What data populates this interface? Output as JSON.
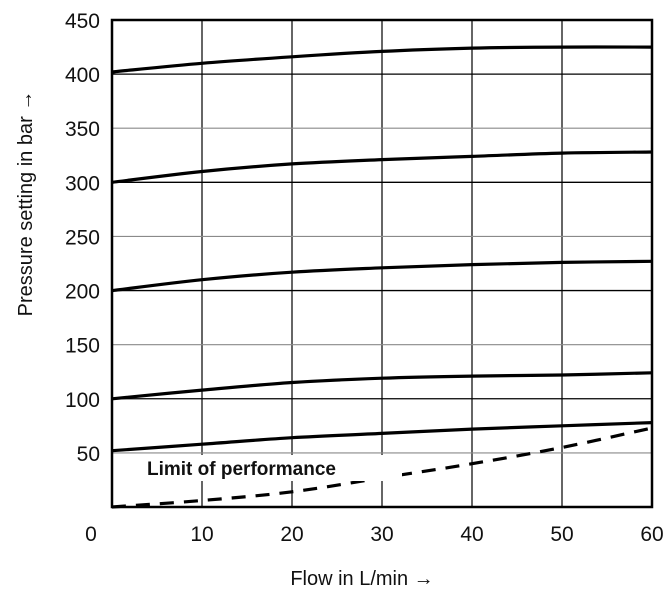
{
  "chart_data": {
    "type": "line",
    "title": "",
    "xlabel": "Flow in L/min →",
    "ylabel": "Pressure setting in bar →",
    "xlim": [
      0,
      60
    ],
    "ylim": [
      0,
      450
    ],
    "x_ticks": [
      "0",
      "10",
      "20",
      "30",
      "40",
      "50",
      "60"
    ],
    "y_ticks": [
      "50",
      "100",
      "150",
      "200",
      "250",
      "300",
      "350",
      "400",
      "450"
    ],
    "grid": true,
    "annotation": "Limit of performance",
    "series": [
      {
        "style": "solid",
        "x": [
          0,
          10,
          20,
          30,
          40,
          50,
          60
        ],
        "y": [
          52,
          58,
          64,
          68,
          72,
          75,
          78
        ]
      },
      {
        "style": "solid",
        "x": [
          0,
          10,
          20,
          30,
          40,
          50,
          60
        ],
        "y": [
          100,
          108,
          115,
          119,
          121,
          122,
          124
        ]
      },
      {
        "style": "solid",
        "x": [
          0,
          10,
          20,
          30,
          40,
          50,
          60
        ],
        "y": [
          200,
          210,
          217,
          221,
          224,
          226,
          227
        ]
      },
      {
        "style": "solid",
        "x": [
          0,
          10,
          20,
          30,
          40,
          50,
          60
        ],
        "y": [
          300,
          310,
          317,
          321,
          324,
          327,
          328
        ]
      },
      {
        "style": "solid",
        "x": [
          0,
          10,
          20,
          30,
          40,
          50,
          60
        ],
        "y": [
          402,
          410,
          416,
          421,
          424,
          425,
          425
        ]
      },
      {
        "style": "dashed",
        "x": [
          0,
          10,
          20,
          30,
          40,
          50,
          60
        ],
        "y": [
          0,
          6,
          14,
          27,
          40,
          55,
          73
        ]
      }
    ]
  }
}
